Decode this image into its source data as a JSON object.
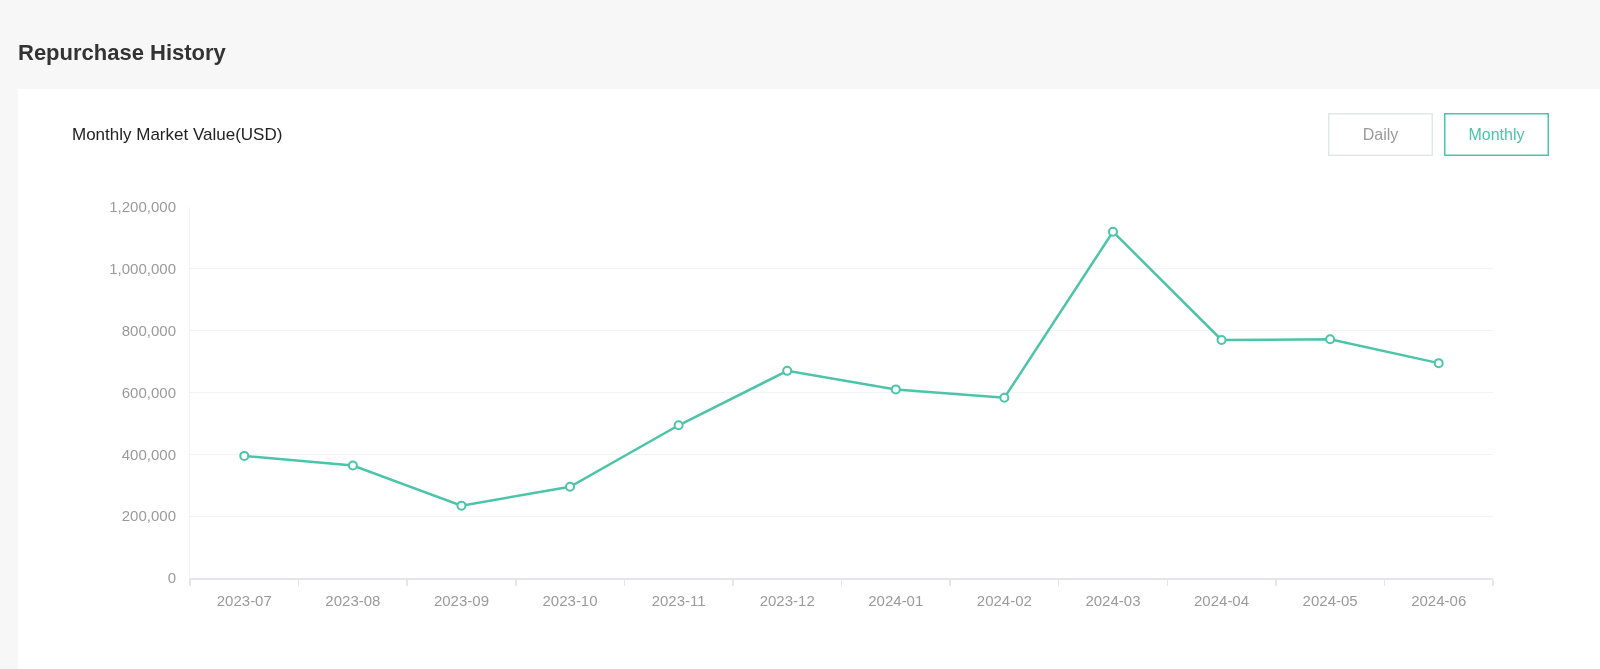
{
  "chart_data": {
    "type": "line",
    "title": "Repurchase History",
    "subtitle": "Monthly Market Value(USD)",
    "annotations": [
      "Daily",
      "Monthly"
    ],
    "categories": [
      "2023-07",
      "2023-08",
      "2023-09",
      "2023-10",
      "2023-11",
      "2023-12",
      "2024-01",
      "2024-02",
      "2024-03",
      "2024-04",
      "2024-05",
      "2024-06"
    ],
    "series": [
      {
        "color": "#4cc4aa",
        "values": [
          395000,
          364000,
          234000,
          295000,
          494000,
          670000,
          610000,
          583000,
          1120000,
          770000,
          772000,
          695000
        ]
      }
    ],
    "ylim": [
      0,
      1200000
    ],
    "yticks": [
      {
        "value": 0,
        "label": "0"
      },
      {
        "value": 200000,
        "label": "200,000"
      },
      {
        "value": 400000,
        "label": "400,000"
      },
      {
        "value": 600000,
        "label": "600,000"
      },
      {
        "value": 800000,
        "label": "800,000"
      },
      {
        "value": 1000000,
        "label": "1,000,000"
      },
      {
        "value": 1200000,
        "label": "1,200,000"
      }
    ],
    "grid": "y",
    "marker": "circle",
    "line_style": "solid"
  }
}
